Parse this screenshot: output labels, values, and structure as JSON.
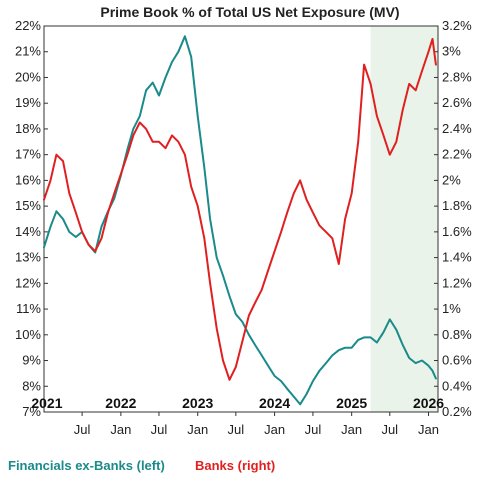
{
  "chart_data": {
    "type": "line",
    "title": "Prime Book % of Total US Net Exposure (MV)",
    "x_range": [
      "2021-01-01",
      "2026-02-15"
    ],
    "y_left": {
      "min": 7,
      "max": 22,
      "ticks": [
        7,
        8,
        9,
        10,
        11,
        12,
        13,
        14,
        15,
        16,
        17,
        18,
        19,
        20,
        21,
        22
      ],
      "unit": "%"
    },
    "y_right": {
      "min": 0.2,
      "max": 3.2,
      "ticks": [
        0.2,
        0.4,
        0.6,
        0.8,
        1.0,
        1.2,
        1.4,
        1.6,
        1.8,
        2.0,
        2.2,
        2.4,
        2.6,
        2.8,
        3.0,
        3.2
      ],
      "unit": "%"
    },
    "y_left_labels": [
      "7%",
      "8%",
      "9%",
      "10%",
      "11%",
      "12%",
      "13%",
      "14%",
      "15%",
      "16%",
      "17%",
      "18%",
      "19%",
      "20%",
      "21%",
      "22%"
    ],
    "y_right_labels": [
      "0.2%",
      "0.4%",
      "0.6%",
      "0.8%",
      "1%",
      "1.2%",
      "1.4%",
      "1.6%",
      "1.8%",
      "2%",
      "2.2%",
      "2.4%",
      "2.6%",
      "2.8%",
      "3%",
      "3.2%"
    ],
    "x_month_ticks": [
      {
        "date": "2021-07-01",
        "label": "Jul"
      },
      {
        "date": "2022-01-01",
        "label": "Jan"
      },
      {
        "date": "2022-07-01",
        "label": "Jul"
      },
      {
        "date": "2023-01-01",
        "label": "Jan"
      },
      {
        "date": "2023-07-01",
        "label": "Jul"
      },
      {
        "date": "2024-01-01",
        "label": "Jan"
      },
      {
        "date": "2024-07-01",
        "label": "Jul"
      },
      {
        "date": "2025-01-01",
        "label": "Jan"
      },
      {
        "date": "2025-07-01",
        "label": "Jul"
      },
      {
        "date": "2026-01-01",
        "label": "Jan"
      }
    ],
    "x_year_labels": [
      {
        "date": "2021-01-15",
        "label": "2021"
      },
      {
        "date": "2022-01-01",
        "label": "2022"
      },
      {
        "date": "2023-01-01",
        "label": "2023"
      },
      {
        "date": "2024-01-01",
        "label": "2024"
      },
      {
        "date": "2025-01-01",
        "label": "2025"
      },
      {
        "date": "2026-01-01",
        "label": "2026"
      }
    ],
    "shaded_region": {
      "start": "2025-04-01",
      "end": "2026-02-15",
      "color": "#eaf3ea"
    },
    "series": [
      {
        "name": "Financials ex-Banks (left)",
        "axis": "left",
        "color": "#1a8a8a",
        "points": [
          [
            "2021-01-01",
            13.4
          ],
          [
            "2021-02-01",
            14.2
          ],
          [
            "2021-03-01",
            14.8
          ],
          [
            "2021-04-01",
            14.5
          ],
          [
            "2021-05-01",
            14.0
          ],
          [
            "2021-06-01",
            13.8
          ],
          [
            "2021-07-01",
            14.0
          ],
          [
            "2021-08-01",
            13.5
          ],
          [
            "2021-09-01",
            13.2
          ],
          [
            "2021-10-01",
            14.2
          ],
          [
            "2021-11-01",
            14.8
          ],
          [
            "2021-12-01",
            15.3
          ],
          [
            "2022-01-01",
            16.2
          ],
          [
            "2022-02-01",
            17.2
          ],
          [
            "2022-03-01",
            18.0
          ],
          [
            "2022-04-01",
            18.5
          ],
          [
            "2022-05-01",
            19.5
          ],
          [
            "2022-06-01",
            19.8
          ],
          [
            "2022-07-01",
            19.3
          ],
          [
            "2022-08-01",
            20.0
          ],
          [
            "2022-09-01",
            20.6
          ],
          [
            "2022-10-01",
            21.0
          ],
          [
            "2022-11-01",
            21.6
          ],
          [
            "2022-12-01",
            20.8
          ],
          [
            "2023-01-01",
            18.5
          ],
          [
            "2023-02-01",
            16.5
          ],
          [
            "2023-03-01",
            14.5
          ],
          [
            "2023-04-01",
            13.0
          ],
          [
            "2023-05-01",
            12.3
          ],
          [
            "2023-06-01",
            11.5
          ],
          [
            "2023-07-01",
            10.8
          ],
          [
            "2023-08-01",
            10.5
          ],
          [
            "2023-09-01",
            10.0
          ],
          [
            "2023-10-01",
            9.6
          ],
          [
            "2023-11-01",
            9.2
          ],
          [
            "2023-12-01",
            8.8
          ],
          [
            "2024-01-01",
            8.4
          ],
          [
            "2024-02-01",
            8.2
          ],
          [
            "2024-03-01",
            7.9
          ],
          [
            "2024-04-01",
            7.6
          ],
          [
            "2024-05-01",
            7.3
          ],
          [
            "2024-06-01",
            7.7
          ],
          [
            "2024-07-01",
            8.2
          ],
          [
            "2024-08-01",
            8.6
          ],
          [
            "2024-09-01",
            8.9
          ],
          [
            "2024-10-01",
            9.2
          ],
          [
            "2024-11-01",
            9.4
          ],
          [
            "2024-12-01",
            9.5
          ],
          [
            "2025-01-01",
            9.5
          ],
          [
            "2025-02-01",
            9.8
          ],
          [
            "2025-03-01",
            9.9
          ],
          [
            "2025-04-01",
            9.9
          ],
          [
            "2025-05-01",
            9.7
          ],
          [
            "2025-06-01",
            10.1
          ],
          [
            "2025-07-01",
            10.6
          ],
          [
            "2025-08-01",
            10.2
          ],
          [
            "2025-09-01",
            9.6
          ],
          [
            "2025-10-01",
            9.1
          ],
          [
            "2025-11-01",
            8.9
          ],
          [
            "2025-12-01",
            9.0
          ],
          [
            "2026-01-01",
            8.8
          ],
          [
            "2026-01-20",
            8.6
          ],
          [
            "2026-02-05",
            8.3
          ]
        ]
      },
      {
        "name": "Banks (right)",
        "axis": "right",
        "color": "#e02020",
        "points": [
          [
            "2021-01-01",
            1.85
          ],
          [
            "2021-02-01",
            2.0
          ],
          [
            "2021-03-01",
            2.2
          ],
          [
            "2021-04-01",
            2.15
          ],
          [
            "2021-05-01",
            1.9
          ],
          [
            "2021-06-01",
            1.75
          ],
          [
            "2021-07-01",
            1.6
          ],
          [
            "2021-08-01",
            1.5
          ],
          [
            "2021-09-01",
            1.45
          ],
          [
            "2021-10-01",
            1.55
          ],
          [
            "2021-11-01",
            1.75
          ],
          [
            "2021-12-01",
            1.9
          ],
          [
            "2022-01-01",
            2.05
          ],
          [
            "2022-02-01",
            2.2
          ],
          [
            "2022-03-01",
            2.35
          ],
          [
            "2022-04-01",
            2.45
          ],
          [
            "2022-05-01",
            2.4
          ],
          [
            "2022-06-01",
            2.3
          ],
          [
            "2022-07-01",
            2.3
          ],
          [
            "2022-08-01",
            2.25
          ],
          [
            "2022-09-01",
            2.35
          ],
          [
            "2022-10-01",
            2.3
          ],
          [
            "2022-11-01",
            2.2
          ],
          [
            "2022-12-01",
            1.95
          ],
          [
            "2023-01-01",
            1.8
          ],
          [
            "2023-02-01",
            1.55
          ],
          [
            "2023-03-01",
            1.2
          ],
          [
            "2023-04-01",
            0.85
          ],
          [
            "2023-05-01",
            0.6
          ],
          [
            "2023-06-01",
            0.45
          ],
          [
            "2023-07-01",
            0.55
          ],
          [
            "2023-08-01",
            0.75
          ],
          [
            "2023-09-01",
            0.95
          ],
          [
            "2023-10-01",
            1.05
          ],
          [
            "2023-11-01",
            1.15
          ],
          [
            "2023-12-01",
            1.3
          ],
          [
            "2024-01-01",
            1.45
          ],
          [
            "2024-02-01",
            1.6
          ],
          [
            "2024-03-01",
            1.75
          ],
          [
            "2024-04-01",
            1.9
          ],
          [
            "2024-05-01",
            2.0
          ],
          [
            "2024-06-01",
            1.85
          ],
          [
            "2024-07-01",
            1.75
          ],
          [
            "2024-08-01",
            1.65
          ],
          [
            "2024-09-01",
            1.6
          ],
          [
            "2024-10-01",
            1.55
          ],
          [
            "2024-11-01",
            1.35
          ],
          [
            "2024-12-01",
            1.7
          ],
          [
            "2025-01-01",
            1.9
          ],
          [
            "2025-02-01",
            2.3
          ],
          [
            "2025-03-01",
            2.9
          ],
          [
            "2025-04-01",
            2.75
          ],
          [
            "2025-05-01",
            2.5
          ],
          [
            "2025-06-01",
            2.35
          ],
          [
            "2025-07-01",
            2.2
          ],
          [
            "2025-08-01",
            2.3
          ],
          [
            "2025-09-01",
            2.55
          ],
          [
            "2025-10-01",
            2.75
          ],
          [
            "2025-11-01",
            2.7
          ],
          [
            "2025-12-01",
            2.85
          ],
          [
            "2026-01-01",
            3.0
          ],
          [
            "2026-01-20",
            3.1
          ],
          [
            "2026-02-05",
            2.9
          ]
        ]
      }
    ],
    "legend": [
      {
        "label": "Financials ex-Banks (left)",
        "color": "#1a8a8a"
      },
      {
        "label": "Banks (right)",
        "color": "#e02020"
      }
    ],
    "legend_position": "bottom-left",
    "grid": false
  }
}
